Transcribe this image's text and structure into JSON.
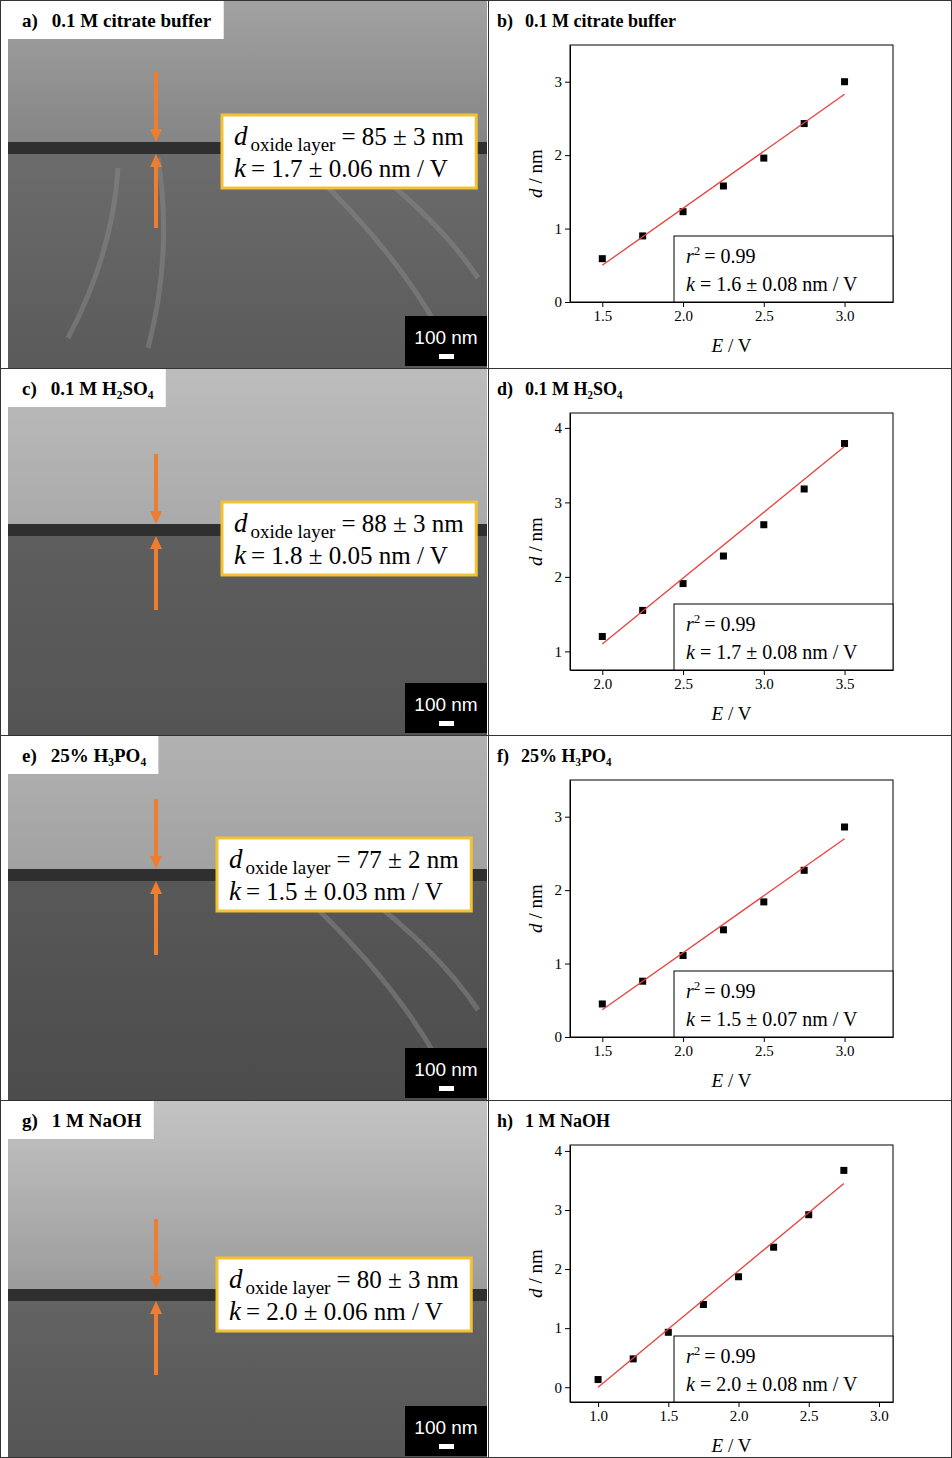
{
  "images": [
    {
      "panel": "a)",
      "title": "0.1 M citrate buffer",
      "thickness": {
        "symbol": "d",
        "subscript": "oxide layer",
        "text": "= 85 ± 3 nm"
      },
      "slope": {
        "symbol": "k",
        "text": "= 1.7 ± 0.06 nm / V"
      },
      "scale_bar": "100 nm"
    },
    {
      "panel": "c)",
      "title": "0.1 M H₂SO₄",
      "thickness": {
        "symbol": "d",
        "subscript": "oxide layer",
        "text": "= 88 ± 3 nm"
      },
      "slope": {
        "symbol": "k",
        "text": "= 1.8 ± 0.05 nm / V"
      },
      "scale_bar": "100 nm"
    },
    {
      "panel": "e)",
      "title": "25% H₃PO₄",
      "thickness": {
        "symbol": "d",
        "subscript": "oxide layer",
        "text": "= 77 ± 2 nm"
      },
      "slope": {
        "symbol": "k",
        "text": "= 1.5 ± 0.03 nm / V"
      },
      "scale_bar": "100 nm"
    },
    {
      "panel": "g)",
      "title": "1 M NaOH",
      "thickness": {
        "symbol": "d",
        "subscript": "oxide layer",
        "text": "= 80 ± 3 nm"
      },
      "slope": {
        "symbol": "k",
        "text": "= 2.0 ± 0.06 nm / V"
      },
      "scale_bar": "100 nm"
    }
  ],
  "chart_data": [
    {
      "type": "scatter",
      "panel": "b)",
      "title": "0.1 M citrate buffer",
      "x_label": {
        "symbol": "E",
        "text": "/ V"
      },
      "y_label": {
        "symbol": "d",
        "text": "/ nm"
      },
      "xlim": [
        1.3,
        3.3
      ],
      "xticks": [
        1.5,
        {
          "value": 2,
          "label": "2.0"
        },
        2.5,
        {
          "value": 3,
          "label": "3.0"
        }
      ],
      "ylim": [
        0,
        3.5
      ],
      "yticks": [
        0,
        1,
        2,
        3
      ],
      "series": [
        {
          "type": "scatter",
          "marker": "square",
          "color": "#000000",
          "x": [
            1.5,
            1.75,
            2.0,
            2.25,
            2.5,
            2.75,
            3.0
          ],
          "values": [
            0.59,
            0.9,
            1.23,
            1.58,
            1.96,
            2.43,
            3.0
          ]
        },
        {
          "type": "line",
          "line_style": "solid",
          "color": "#e8413c",
          "x": [
            1.5,
            3.0
          ],
          "values": [
            0.5,
            2.83
          ]
        }
      ],
      "annotations": [
        {
          "symbol": "r",
          "superscript": "2",
          "text": "= 0.99"
        },
        {
          "symbol": "k",
          "text": "= 1.6 ± 0.08 nm / V"
        }
      ]
    },
    {
      "type": "scatter",
      "panel": "d)",
      "title": "0.1 M H₂SO₄",
      "x_label": {
        "symbol": "E",
        "text": "/ V"
      },
      "y_label": {
        "symbol": "d",
        "text": "/ nm"
      },
      "xlim": [
        1.8,
        3.8
      ],
      "xticks": [
        {
          "value": 2,
          "label": "2.0"
        },
        2.5,
        {
          "value": 3,
          "label": "3.0"
        },
        3.5
      ],
      "ylim": [
        0.75,
        4.2
      ],
      "yticks": [
        1,
        2,
        3,
        4
      ],
      "series": [
        {
          "type": "scatter",
          "marker": "square",
          "color": "#000000",
          "x": [
            2.0,
            2.25,
            2.5,
            2.75,
            3.0,
            3.25,
            3.5
          ],
          "values": [
            1.2,
            1.55,
            1.91,
            2.28,
            2.7,
            3.18,
            3.79
          ]
        },
        {
          "type": "line",
          "line_style": "solid",
          "color": "#e8413c",
          "x": [
            2.0,
            3.5
          ],
          "values": [
            1.1,
            3.75
          ]
        }
      ],
      "annotations": [
        {
          "symbol": "r",
          "superscript": "2",
          "text": "= 0.99"
        },
        {
          "symbol": "k",
          "text": "= 1.7 ± 0.08 nm / V"
        }
      ]
    },
    {
      "type": "scatter",
      "panel": "f)",
      "title": "25% H₃PO₄",
      "x_label": {
        "symbol": "E",
        "text": "/ V"
      },
      "y_label": {
        "symbol": "d",
        "text": "/ nm"
      },
      "xlim": [
        1.3,
        3.3
      ],
      "xticks": [
        1.5,
        {
          "value": 2,
          "label": "2.0"
        },
        2.5,
        {
          "value": 3,
          "label": "3.0"
        }
      ],
      "ylim": [
        0,
        3.5
      ],
      "yticks": [
        0,
        1,
        2,
        3
      ],
      "series": [
        {
          "type": "scatter",
          "marker": "square",
          "color": "#000000",
          "x": [
            1.5,
            1.75,
            2.0,
            2.25,
            2.5,
            2.75,
            3.0
          ],
          "values": [
            0.45,
            0.76,
            1.11,
            1.46,
            1.84,
            2.27,
            2.86
          ]
        },
        {
          "type": "line",
          "line_style": "solid",
          "color": "#e8413c",
          "x": [
            1.5,
            3.0
          ],
          "values": [
            0.37,
            2.7
          ]
        }
      ],
      "annotations": [
        {
          "symbol": "r",
          "superscript": "2",
          "text": "= 0.99"
        },
        {
          "symbol": "k",
          "text": "= 1.5 ± 0.07 nm / V"
        }
      ]
    },
    {
      "type": "scatter",
      "panel": "h)",
      "title": "1 M NaOH",
      "x_label": {
        "symbol": "E",
        "text": "/ V"
      },
      "y_label": {
        "symbol": "d",
        "text": "/ nm"
      },
      "xlim": [
        0.8,
        3.1
      ],
      "xticks": [
        {
          "value": 1,
          "label": "1.0"
        },
        1.5,
        {
          "value": 2,
          "label": "2.0"
        },
        2.5,
        {
          "value": 3,
          "label": "3.0"
        }
      ],
      "ylim": [
        -0.25,
        4.1
      ],
      "yticks": [
        0,
        1,
        2,
        3,
        4
      ],
      "series": [
        {
          "type": "scatter",
          "marker": "square",
          "color": "#000000",
          "x": [
            1.0,
            1.25,
            1.5,
            1.75,
            2.0,
            2.25,
            2.5,
            2.75
          ],
          "values": [
            0.13,
            0.48,
            0.93,
            1.4,
            1.87,
            2.37,
            2.92,
            3.67
          ]
        },
        {
          "type": "line",
          "line_style": "solid",
          "color": "#e8413c",
          "x": [
            1.0,
            2.75
          ],
          "values": [
            0.0,
            3.45
          ]
        }
      ],
      "annotations": [
        {
          "symbol": "r",
          "superscript": "2",
          "text": "= 0.99"
        },
        {
          "symbol": "k",
          "text": "= 2.0 ± 0.08 nm / V"
        }
      ]
    }
  ]
}
